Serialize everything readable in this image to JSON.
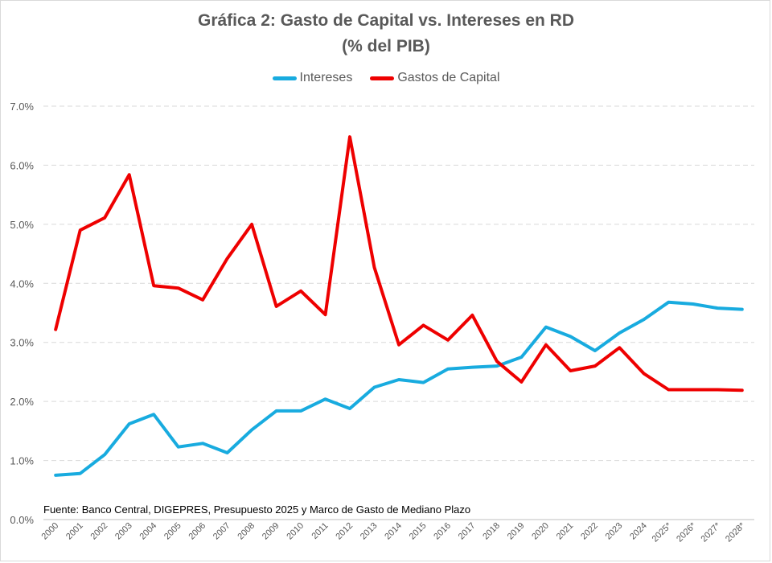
{
  "chart_data": {
    "type": "line",
    "title": "Gráfica 2: Gasto de Capital vs. Intereses en RD",
    "subtitle": "(% del PIB)",
    "categories": [
      "2000",
      "2001",
      "2002",
      "2003",
      "2004",
      "2005",
      "2006",
      "2007",
      "2008",
      "2009",
      "2010",
      "2011",
      "2012",
      "2013",
      "2014",
      "2015",
      "2016",
      "2017",
      "2018",
      "2019",
      "2020",
      "2021",
      "2022",
      "2023",
      "2024",
      "2025*",
      "2026*",
      "2027*",
      "2028*"
    ],
    "series": [
      {
        "name": "Intereses",
        "color": "#18ABDF",
        "values": [
          0.75,
          0.78,
          1.1,
          1.62,
          1.78,
          1.23,
          1.29,
          1.13,
          1.52,
          1.84,
          1.84,
          2.04,
          1.88,
          2.24,
          2.37,
          2.32,
          2.55,
          2.58,
          2.6,
          2.75,
          3.26,
          3.1,
          2.86,
          3.16,
          3.39,
          3.68,
          3.65,
          3.58,
          3.56
        ]
      },
      {
        "name": "Gastos de Capital",
        "color": "#EE0000",
        "values": [
          3.22,
          4.9,
          5.11,
          5.84,
          3.96,
          3.92,
          3.72,
          4.42,
          5.0,
          3.61,
          3.87,
          3.47,
          6.48,
          4.27,
          2.96,
          3.29,
          3.04,
          3.46,
          2.68,
          2.33,
          2.96,
          2.52,
          2.6,
          2.91,
          2.47,
          2.2,
          2.2,
          2.2,
          2.19
        ]
      }
    ],
    "ylim": [
      0,
      7
    ],
    "yticks": [
      "0.0%",
      "1.0%",
      "2.0%",
      "3.0%",
      "4.0%",
      "5.0%",
      "6.0%",
      "7.0%"
    ],
    "grid": true,
    "legend_position": "top",
    "source_note": "Fuente: Banco Central, DIGEPRES, Presupuesto 2025 y Marco de Gasto de Mediano Plazo"
  }
}
